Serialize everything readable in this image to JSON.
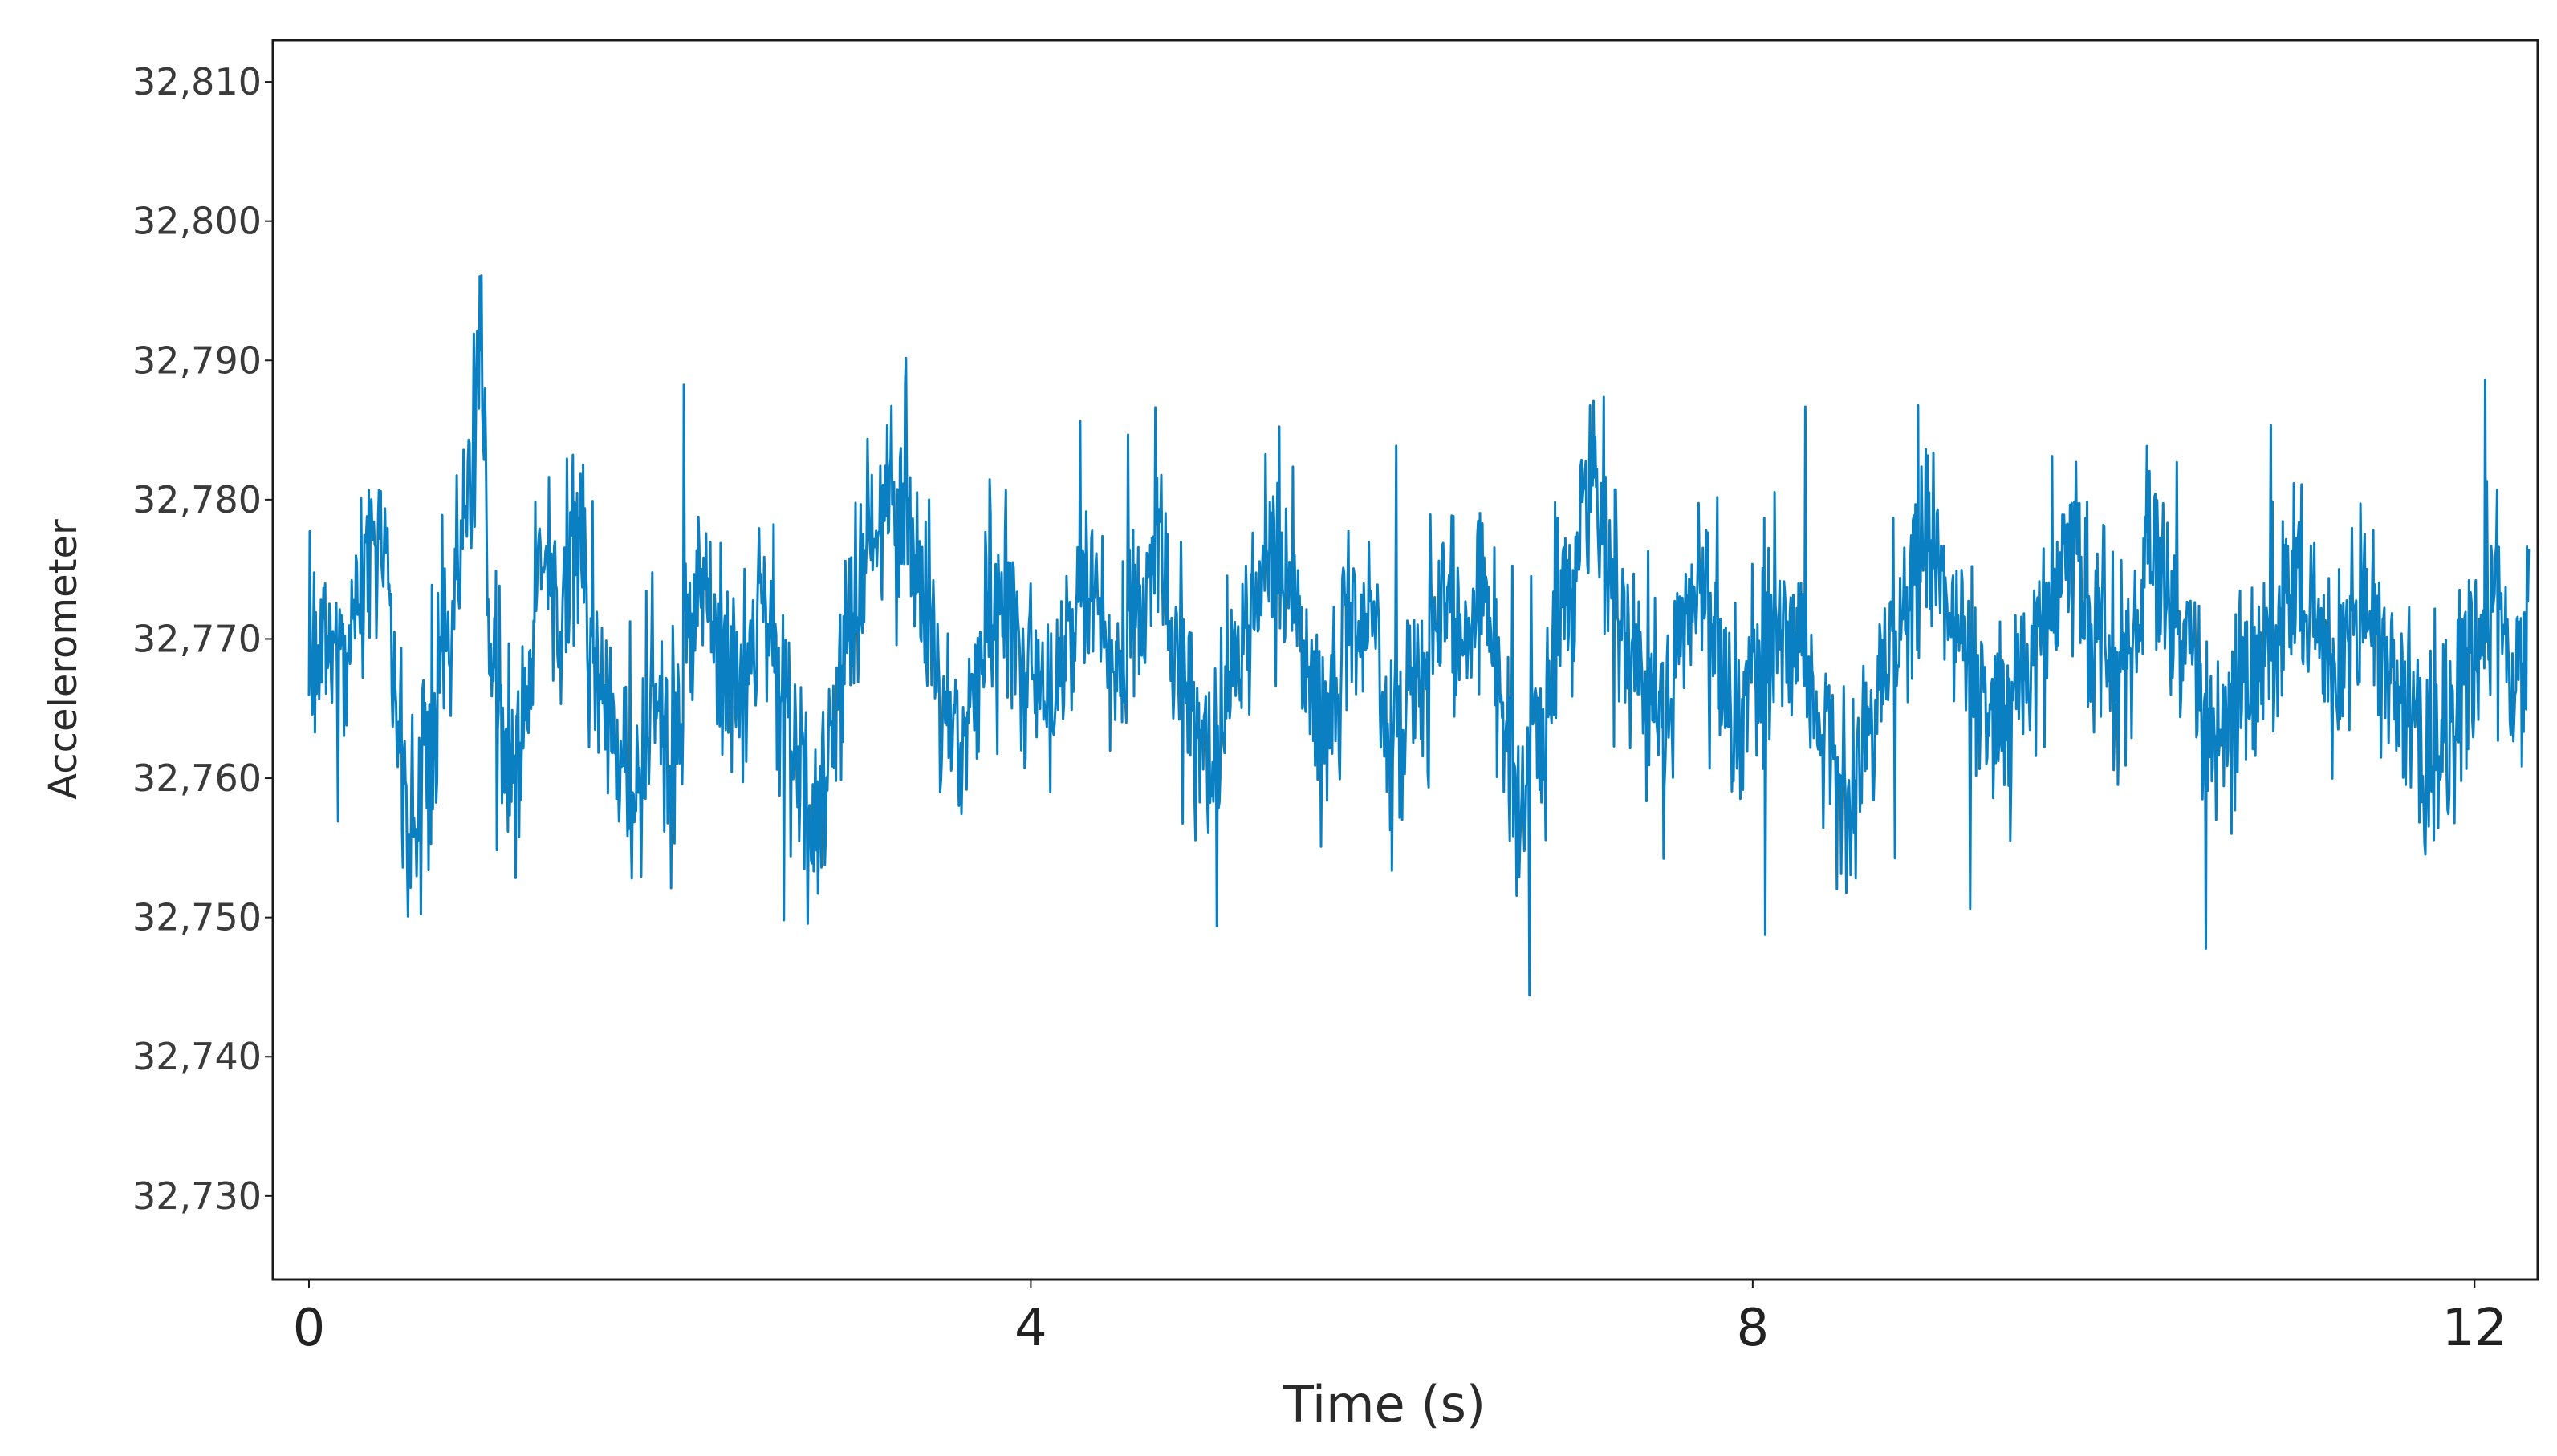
{
  "chart_data": {
    "type": "line",
    "title": "",
    "xlabel": "Time (s)",
    "ylabel": "Accelerometer",
    "xlim": [
      -0.2,
      12.35
    ],
    "ylim": [
      32724,
      32813
    ],
    "x_ticks": [
      {
        "value": 0,
        "label": "0"
      },
      {
        "value": 4,
        "label": "4"
      },
      {
        "value": 8,
        "label": "8"
      },
      {
        "value": 12,
        "label": "12"
      }
    ],
    "y_ticks": [
      {
        "value": 32730,
        "label": "32,730"
      },
      {
        "value": 32740,
        "label": "32,740"
      },
      {
        "value": 32750,
        "label": "32,750"
      },
      {
        "value": 32760,
        "label": "32,760"
      },
      {
        "value": 32770,
        "label": "32,770"
      },
      {
        "value": 32780,
        "label": "32,780"
      },
      {
        "value": 32790,
        "label": "32,790"
      },
      {
        "value": 32800,
        "label": "32,800"
      },
      {
        "value": 32810,
        "label": "32,810"
      }
    ],
    "grid": false,
    "legend": "none",
    "line_color": "#0a7fc1",
    "series": [
      {
        "x": [
          0.0,
          0.2,
          0.3,
          0.4,
          0.5,
          0.55,
          0.6,
          0.7,
          0.8,
          0.9,
          0.95,
          1.0,
          1.1,
          1.2,
          1.3,
          1.4,
          1.5,
          1.6,
          1.7,
          1.8,
          1.9,
          2.0,
          2.1,
          2.2,
          2.3,
          2.4,
          2.5,
          2.6,
          2.7,
          2.8,
          2.9,
          3.0,
          3.1,
          3.2,
          3.3,
          3.4,
          3.5,
          3.6,
          3.7,
          3.8,
          3.9,
          4.0,
          4.1,
          4.2,
          4.3,
          4.4,
          4.5,
          4.6,
          4.7,
          4.8,
          4.9,
          5.0,
          5.1,
          5.2,
          5.3,
          5.4,
          5.5,
          5.6,
          5.7,
          5.8,
          5.9,
          6.0,
          6.1,
          6.2,
          6.3,
          6.4,
          6.5,
          6.6,
          6.7,
          6.8,
          6.9,
          7.0,
          7.1,
          7.2,
          7.3,
          7.4,
          7.5,
          7.6,
          7.7,
          7.8,
          7.9,
          8.0,
          8.1,
          8.2,
          8.3,
          8.4,
          8.5,
          8.6,
          8.7,
          8.8,
          8.9,
          9.0,
          9.1,
          9.2,
          9.3,
          9.4,
          9.5,
          9.6,
          9.7,
          9.8,
          9.9,
          10.0,
          10.1,
          10.2,
          10.3,
          10.4,
          10.5,
          10.6,
          10.7,
          10.8,
          10.9,
          11.0,
          11.1,
          11.2,
          11.3,
          11.4,
          11.5,
          11.6,
          11.7,
          11.8,
          11.9,
          12.0,
          12.1,
          12.2,
          12.3
        ],
        "values": [
          32769,
          32767,
          32775,
          32778,
          32763,
          32752,
          32758,
          32766,
          32772,
          32781,
          32794,
          32770,
          32760,
          32766,
          32775,
          32772,
          32778,
          32768,
          32762,
          32758,
          32765,
          32761,
          32770,
          32773,
          32769,
          32765,
          32772,
          32767,
          32760,
          32757,
          32763,
          32770,
          32776,
          32781,
          32778,
          32772,
          32767,
          32762,
          32766,
          32773,
          32771,
          32768,
          32765,
          32770,
          32774,
          32771,
          32767,
          32772,
          32778,
          32770,
          32764,
          32760,
          32768,
          32772,
          32776,
          32774,
          32770,
          32764,
          32767,
          32773,
          32771,
          32761,
          32766,
          32770,
          32774,
          32770,
          32772,
          32765,
          32758,
          32762,
          32768,
          32775,
          32781,
          32776,
          32771,
          32767,
          32765,
          32769,
          32773,
          32770,
          32763,
          32766,
          32769,
          32772,
          32768,
          32764,
          32758,
          32762,
          32766,
          32771,
          32774,
          32777,
          32773,
          32769,
          32765,
          32764,
          32768,
          32771,
          32775,
          32777,
          32770,
          32767,
          32770,
          32776,
          32774,
          32769,
          32765,
          32762,
          32768,
          32766,
          32771,
          32774,
          32772,
          32768,
          32770,
          32773,
          32768,
          32766,
          32763,
          32761,
          32765,
          32770,
          32774,
          32766,
          32773
        ]
      }
    ],
    "noise_seed": 20240517,
    "noise_sigma": 3.6,
    "sample_count": 2600
  }
}
